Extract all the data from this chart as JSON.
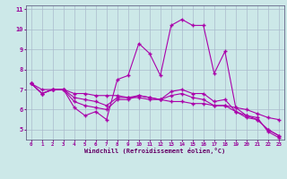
{
  "xlabel": "Windchill (Refroidissement éolien,°C)",
  "xlim": [
    -0.5,
    23.5
  ],
  "ylim": [
    4.5,
    11.2
  ],
  "yticks": [
    5,
    6,
    7,
    8,
    9,
    10,
    11
  ],
  "xticks": [
    0,
    1,
    2,
    3,
    4,
    5,
    6,
    7,
    8,
    9,
    10,
    11,
    12,
    13,
    14,
    15,
    16,
    17,
    18,
    19,
    20,
    21,
    22,
    23
  ],
  "bg_color": "#cce8e8",
  "grid_color": "#aabbcc",
  "line_color": "#aa00aa",
  "line1_y": [
    7.3,
    6.8,
    7.0,
    7.0,
    6.1,
    5.7,
    5.9,
    5.5,
    7.5,
    7.7,
    9.3,
    8.8,
    7.7,
    10.2,
    10.5,
    10.2,
    10.2,
    7.8,
    8.9,
    6.1,
    5.7,
    5.6,
    4.9,
    4.6
  ],
  "line2_y": [
    7.3,
    7.0,
    7.0,
    7.0,
    6.8,
    6.8,
    6.7,
    6.7,
    6.7,
    6.6,
    6.6,
    6.5,
    6.5,
    6.4,
    6.4,
    6.3,
    6.3,
    6.2,
    6.2,
    6.1,
    6.0,
    5.8,
    5.6,
    5.5
  ],
  "line3_y": [
    7.3,
    6.8,
    7.0,
    7.0,
    6.4,
    6.2,
    6.1,
    6.0,
    6.5,
    6.5,
    6.7,
    6.6,
    6.5,
    6.9,
    7.0,
    6.8,
    6.8,
    6.4,
    6.5,
    5.9,
    5.6,
    5.5,
    5.0,
    4.7
  ],
  "line4_y": [
    7.3,
    6.8,
    7.0,
    7.0,
    6.6,
    6.5,
    6.4,
    6.2,
    6.6,
    6.6,
    6.7,
    6.6,
    6.5,
    6.7,
    6.8,
    6.6,
    6.5,
    6.2,
    6.2,
    5.9,
    5.7,
    5.5,
    5.0,
    4.7
  ]
}
